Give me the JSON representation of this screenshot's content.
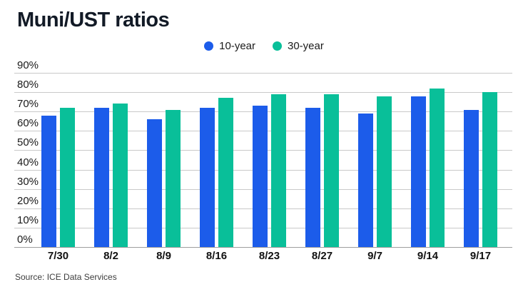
{
  "chart": {
    "title": "Muni/UST ratios",
    "source": "Source: ICE Data Services"
  },
  "chart_data": {
    "type": "bar",
    "title": "Muni/UST ratios",
    "categories": [
      "7/30",
      "8/2",
      "8/9",
      "8/16",
      "8/23",
      "8/27",
      "9/7",
      "9/14",
      "9/17"
    ],
    "series": [
      {
        "name": "10-year",
        "color": "#1c5cea",
        "values": [
          68,
          72,
          66,
          72,
          73,
          72,
          69,
          78,
          71
        ]
      },
      {
        "name": "30-year",
        "color": "#09bf99",
        "values": [
          72,
          74,
          71,
          77,
          79,
          79,
          78,
          82,
          80
        ]
      }
    ],
    "xlabel": "",
    "ylabel": "",
    "ylim": [
      0,
      90
    ],
    "ytick_step": 10,
    "ytick_labels": [
      "0%",
      "10%",
      "20%",
      "30%",
      "40%",
      "50%",
      "60%",
      "70%",
      "80%",
      "90%"
    ],
    "grid": true,
    "legend_position": "top-center",
    "source": "Source: ICE Data Services"
  }
}
